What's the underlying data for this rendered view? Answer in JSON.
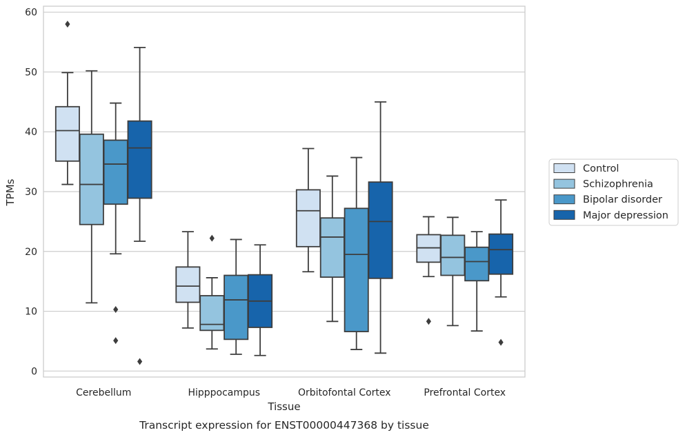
{
  "chart_data": {
    "type": "box",
    "title": "",
    "caption": "Transcript expression for ENST00000447368 by tissue",
    "xlabel": "Tissue",
    "ylabel": "TPMs",
    "ylim": [
      -1,
      61
    ],
    "yticks": [
      0,
      10,
      20,
      30,
      40,
      50,
      60
    ],
    "grid": "horizontal",
    "legend_position": "right",
    "categories": [
      "Cerebellum",
      "Hipppocampus",
      "Orbitofontal Cortex",
      "Prefrontal Cortex"
    ],
    "series": [
      {
        "name": "Control",
        "color": "#d0e1f2",
        "boxes": [
          {
            "whisker_low": 31.2,
            "q1": 35.1,
            "median": 40.2,
            "q3": 44.2,
            "whisker_high": 49.9,
            "outliers": [
              58.0
            ]
          },
          {
            "whisker_low": 7.2,
            "q1": 11.5,
            "median": 14.2,
            "q3": 17.4,
            "whisker_high": 23.3,
            "outliers": []
          },
          {
            "whisker_low": 16.6,
            "q1": 20.8,
            "median": 26.8,
            "q3": 30.3,
            "whisker_high": 37.2,
            "outliers": []
          },
          {
            "whisker_low": 15.8,
            "q1": 18.2,
            "median": 20.6,
            "q3": 22.8,
            "whisker_high": 25.8,
            "outliers": [
              8.3
            ]
          }
        ]
      },
      {
        "name": "Schizophrenia",
        "color": "#94c4df",
        "boxes": [
          {
            "whisker_low": 11.4,
            "q1": 24.5,
            "median": 31.2,
            "q3": 39.6,
            "whisker_high": 50.2,
            "outliers": []
          },
          {
            "whisker_low": 3.7,
            "q1": 6.8,
            "median": 7.8,
            "q3": 12.6,
            "whisker_high": 15.6,
            "outliers": [
              22.2
            ]
          },
          {
            "whisker_low": 8.3,
            "q1": 15.7,
            "median": 22.4,
            "q3": 25.6,
            "whisker_high": 32.6,
            "outliers": []
          },
          {
            "whisker_low": 7.6,
            "q1": 16.0,
            "median": 19.0,
            "q3": 22.7,
            "whisker_high": 25.7,
            "outliers": []
          }
        ]
      },
      {
        "name": "Bipolar disorder",
        "color": "#4a98c9",
        "boxes": [
          {
            "whisker_low": 19.6,
            "q1": 27.9,
            "median": 34.6,
            "q3": 38.6,
            "whisker_high": 44.8,
            "outliers": [
              10.3,
              5.1
            ]
          },
          {
            "whisker_low": 2.8,
            "q1": 5.3,
            "median": 11.9,
            "q3": 16.0,
            "whisker_high": 22.0,
            "outliers": []
          },
          {
            "whisker_low": 3.6,
            "q1": 6.6,
            "median": 19.5,
            "q3": 27.2,
            "whisker_high": 35.7,
            "outliers": []
          },
          {
            "whisker_low": 6.7,
            "q1": 15.1,
            "median": 18.3,
            "q3": 20.7,
            "whisker_high": 23.3,
            "outliers": []
          }
        ]
      },
      {
        "name": "Major depression",
        "color": "#1764ab",
        "boxes": [
          {
            "whisker_low": 21.7,
            "q1": 28.9,
            "median": 37.3,
            "q3": 41.8,
            "whisker_high": 54.1,
            "outliers": [
              1.6
            ]
          },
          {
            "whisker_low": 2.6,
            "q1": 7.3,
            "median": 11.7,
            "q3": 16.1,
            "whisker_high": 21.1,
            "outliers": []
          },
          {
            "whisker_low": 3.0,
            "q1": 15.5,
            "median": 25.0,
            "q3": 31.6,
            "whisker_high": 45.0,
            "outliers": []
          },
          {
            "whisker_low": 12.4,
            "q1": 16.2,
            "median": 20.3,
            "q3": 22.9,
            "whisker_high": 28.6,
            "outliers": [
              4.8
            ]
          }
        ]
      }
    ]
  }
}
